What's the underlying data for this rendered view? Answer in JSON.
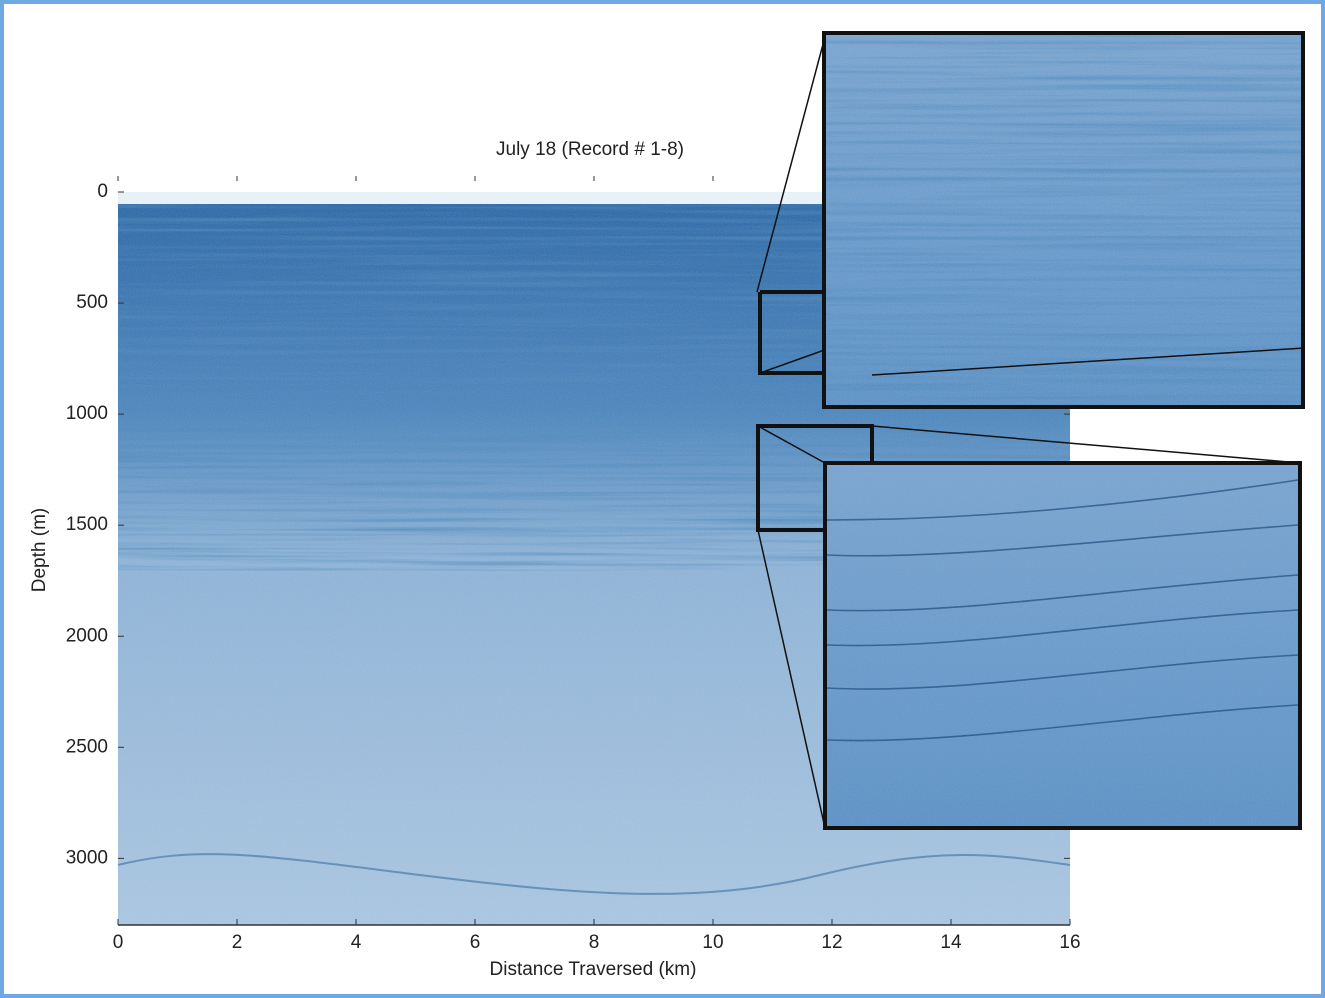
{
  "chart_data": {
    "type": "image",
    "title": "July 18 (Record # 1-8)",
    "x_label": "Distance Traversed (km)",
    "y_label": "Depth (m)",
    "xlim": [
      0,
      16
    ],
    "xticks": [
      0,
      2,
      4,
      6,
      8,
      10,
      12,
      14,
      16
    ],
    "ylim": [
      0,
      3300
    ],
    "yticks": [
      0,
      500,
      1000,
      1500,
      2000,
      2500,
      3000
    ],
    "y_inverted": true
  }
}
